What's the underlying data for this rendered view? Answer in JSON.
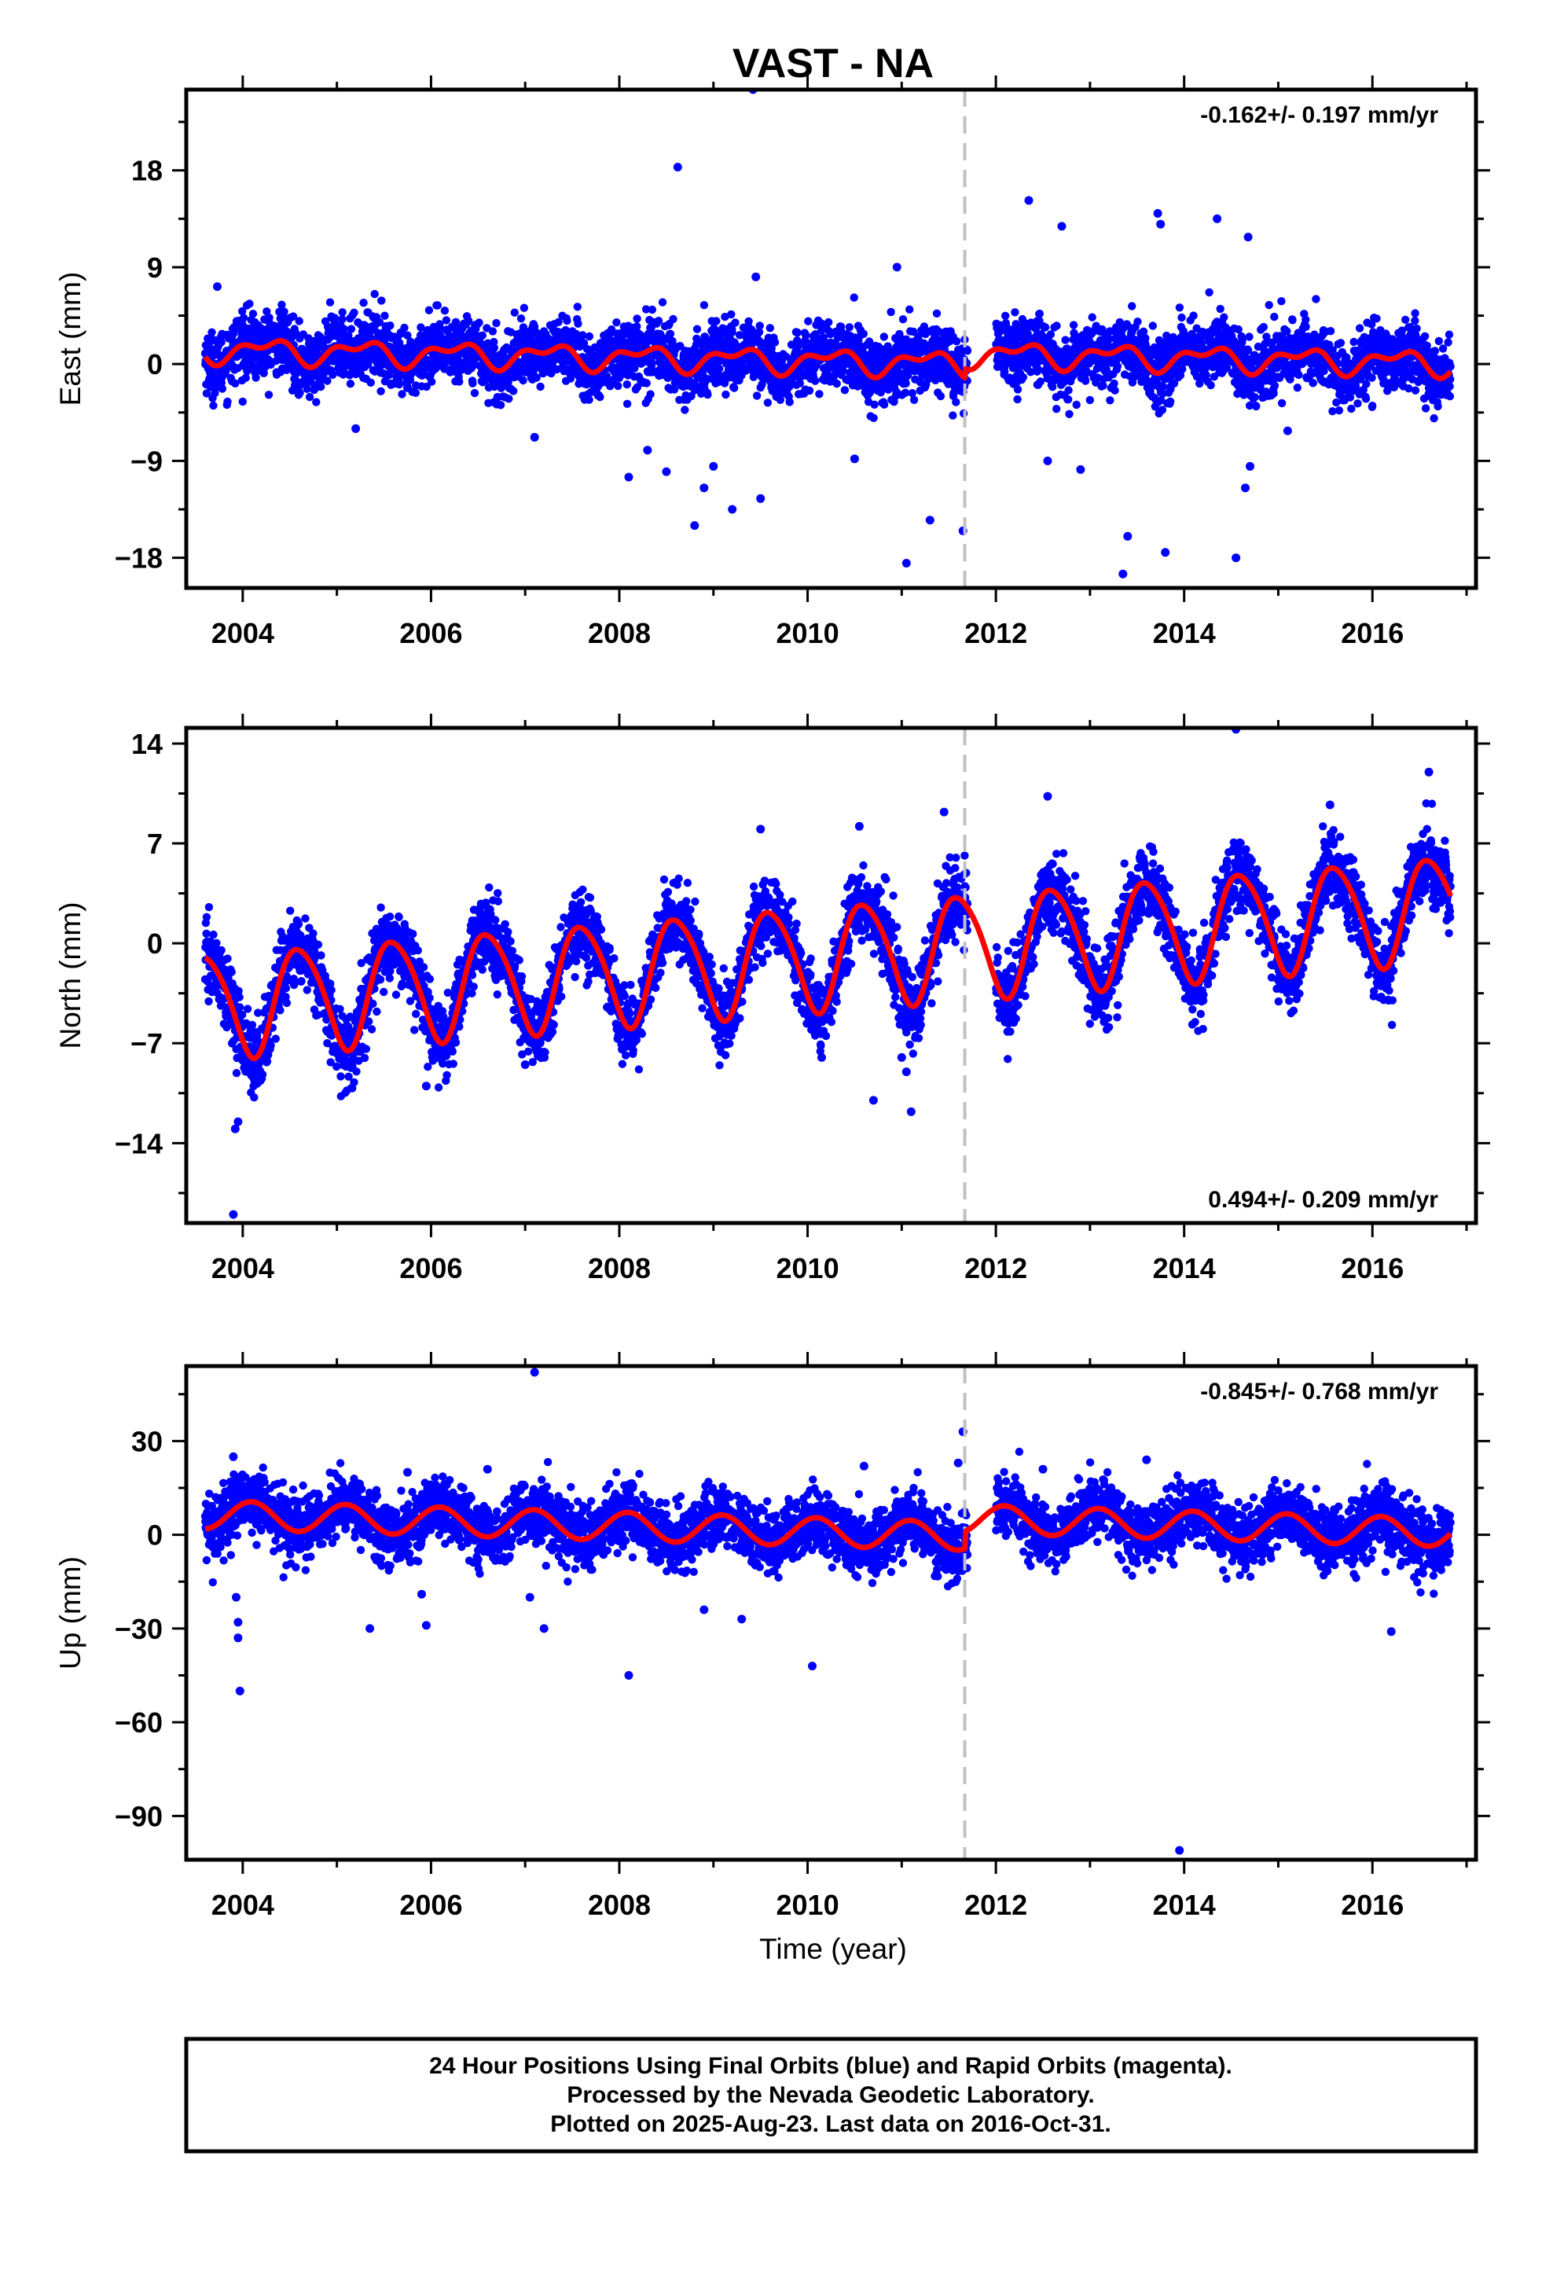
{
  "title": "VAST - NA",
  "xlabel": "Time (year)",
  "footer": [
    "24 Hour Positions Using Final Orbits (blue) and Rapid Orbits (magenta).",
    "Processed by the Nevada Geodetic Laboratory.",
    "Plotted on 2025-Aug-23. Last data on 2016-Oct-31."
  ],
  "colors": {
    "points": "#0000ff",
    "model": "#ff0000",
    "break_line": "#c0c0c0",
    "frame": "#000000"
  },
  "chart_data": [
    {
      "type": "scatter",
      "ylabel": "East (mm)",
      "rate_label": "-0.162+/- 0.197 mm/yr",
      "rate_position": "top-right",
      "xlim": [
        2003.4,
        2017.1
      ],
      "ylim": [
        -20.8,
        25.5
      ],
      "yticks": [
        18,
        9,
        0,
        -9,
        -18
      ],
      "ytick_labels": [
        "18",
        "9",
        "0",
        "−9",
        "−18"
      ],
      "xticks": [
        2004,
        2006,
        2008,
        2010,
        2012,
        2014,
        2016
      ],
      "xtick_labels": [
        "2004",
        "2006",
        "2008",
        "2010",
        "2012",
        "2014",
        "2016"
      ],
      "break_year": 2011.67,
      "grid": false,
      "model": {
        "coefs": [
          0.3,
          -0.16,
          0.0,
          0.9,
          0.5,
          -0.3
        ],
        "offset_after_break": 0.9
      },
      "cloud": {
        "start": 2003.6,
        "end": 2016.83,
        "gap": [
          2011.7,
          2012.0
        ],
        "spread": 1.5
      },
      "series": [
        {
          "points": [
            [
              2003.73,
              7.2
            ],
            [
              2008.62,
              18.3
            ],
            [
              2009.42,
              25.5
            ],
            [
              2009.45,
              8.1
            ],
            [
              2010.95,
              9.0
            ],
            [
              2011.05,
              -18.5
            ],
            [
              2011.3,
              -14.5
            ],
            [
              2011.65,
              -15.5
            ],
            [
              2012.35,
              15.2
            ],
            [
              2012.7,
              12.8
            ],
            [
              2013.72,
              14.0
            ],
            [
              2013.75,
              13.0
            ],
            [
              2014.35,
              13.5
            ],
            [
              2014.68,
              11.8
            ],
            [
              2013.35,
              -19.5
            ],
            [
              2013.8,
              -17.5
            ],
            [
              2014.55,
              -18.0
            ],
            [
              2014.65,
              -11.5
            ],
            [
              2014.7,
              -9.5
            ],
            [
              2013.4,
              -16.0
            ],
            [
              2008.1,
              -10.5
            ],
            [
              2008.3,
              -8.0
            ],
            [
              2008.5,
              -10.0
            ],
            [
              2008.8,
              -15.0
            ],
            [
              2008.9,
              -11.5
            ],
            [
              2009.0,
              -9.5
            ],
            [
              2009.2,
              -13.5
            ],
            [
              2009.5,
              -12.5
            ],
            [
              2010.5,
              -8.8
            ],
            [
              2004.6,
              -2.0
            ],
            [
              2005.2,
              -6.0
            ],
            [
              2007.1,
              -6.8
            ],
            [
              2012.55,
              -9.0
            ],
            [
              2012.9,
              -9.8
            ],
            [
              2015.1,
              -6.2
            ]
          ]
        }
      ]
    },
    {
      "type": "scatter",
      "ylabel": "North (mm)",
      "rate_label": "0.494+/- 0.209 mm/yr",
      "rate_position": "bottom-right",
      "xlim": [
        2003.4,
        2017.1
      ],
      "ylim": [
        -19.6,
        15.1
      ],
      "yticks": [
        14,
        7,
        0,
        -7,
        -14
      ],
      "ytick_labels": [
        "14",
        "7",
        "0",
        "−7",
        "−14"
      ],
      "xticks": [
        2004,
        2006,
        2008,
        2010,
        2012,
        2014,
        2016
      ],
      "xtick_labels": [
        "2004",
        "2006",
        "2008",
        "2010",
        "2012",
        "2014",
        "2016"
      ],
      "break_year": 2011.67,
      "grid": false,
      "model": {
        "coefs": [
          -1.0,
          0.52,
          -2.9,
          -2.2,
          0.2,
          -0.4
        ],
        "offset_after_break": 0.0
      },
      "cloud": {
        "start": 2003.6,
        "end": 2016.83,
        "gap": [
          2011.7,
          2012.0
        ],
        "spread": 1.3
      },
      "series": [
        {
          "points": [
            [
              2003.9,
              -19.0
            ],
            [
              2003.92,
              -13.0
            ],
            [
              2003.95,
              -12.5
            ],
            [
              2010.7,
              -11.0
            ],
            [
              2011.1,
              -11.8
            ],
            [
              2011.0,
              -8.0
            ],
            [
              2011.05,
              -9.0
            ],
            [
              2011.45,
              9.2
            ],
            [
              2014.55,
              15.0
            ],
            [
              2016.6,
              12.0
            ],
            [
              2005.95,
              -10.0
            ],
            [
              2010.15,
              -8.0
            ],
            [
              2007.0,
              -8.5
            ],
            [
              2013.15,
              -5.5
            ],
            [
              2010.55,
              8.2
            ],
            [
              2009.5,
              8.0
            ],
            [
              2012.55,
              10.3
            ],
            [
              2015.55,
              9.7
            ]
          ]
        }
      ]
    },
    {
      "type": "scatter",
      "ylabel": "Up (mm)",
      "rate_label": "-0.845+/- 0.768 mm/yr",
      "rate_position": "top-right",
      "xlim": [
        2003.4,
        2017.1
      ],
      "ylim": [
        -104.0,
        54.0
      ],
      "yticks": [
        30,
        0,
        -30,
        -60,
        -90
      ],
      "ytick_labels": [
        "30",
        "0",
        "−30",
        "−60",
        "−90"
      ],
      "xticks": [
        2004,
        2006,
        2008,
        2010,
        2012,
        2014,
        2016
      ],
      "xtick_labels": [
        "2004",
        "2006",
        "2008",
        "2010",
        "2012",
        "2014",
        "2016"
      ],
      "break_year": 2011.67,
      "grid": false,
      "model": {
        "coefs": [
          1.0,
          -0.85,
          3.8,
          2.5,
          0.0,
          0.0
        ],
        "offset_after_break": 5.5
      },
      "cloud": {
        "start": 2003.6,
        "end": 2016.83,
        "gap": [
          2011.7,
          2012.0
        ],
        "spread": 5.0
      },
      "series": [
        {
          "points": [
            [
              2003.9,
              25.0
            ],
            [
              2003.93,
              -20.0
            ],
            [
              2003.95,
              -28.0
            ],
            [
              2003.95,
              -33.0
            ],
            [
              2003.97,
              -50.0
            ],
            [
              2005.35,
              -30.0
            ],
            [
              2005.95,
              -29.0
            ],
            [
              2005.9,
              -19.0
            ],
            [
              2007.05,
              -20.0
            ],
            [
              2007.2,
              -30.0
            ],
            [
              2007.1,
              52.0
            ],
            [
              2008.1,
              -45.0
            ],
            [
              2008.9,
              -24.0
            ],
            [
              2009.3,
              -27.0
            ],
            [
              2010.05,
              -42.0
            ],
            [
              2011.65,
              33.0
            ],
            [
              2011.6,
              23.0
            ],
            [
              2013.95,
              -101.0
            ],
            [
              2016.2,
              -31.0
            ],
            [
              2012.5,
              21.0
            ],
            [
              2013.6,
              24.0
            ],
            [
              2010.6,
              22.0
            ],
            [
              2006.6,
              21.0
            ],
            [
              2005.75,
              20.0
            ]
          ]
        }
      ]
    }
  ]
}
